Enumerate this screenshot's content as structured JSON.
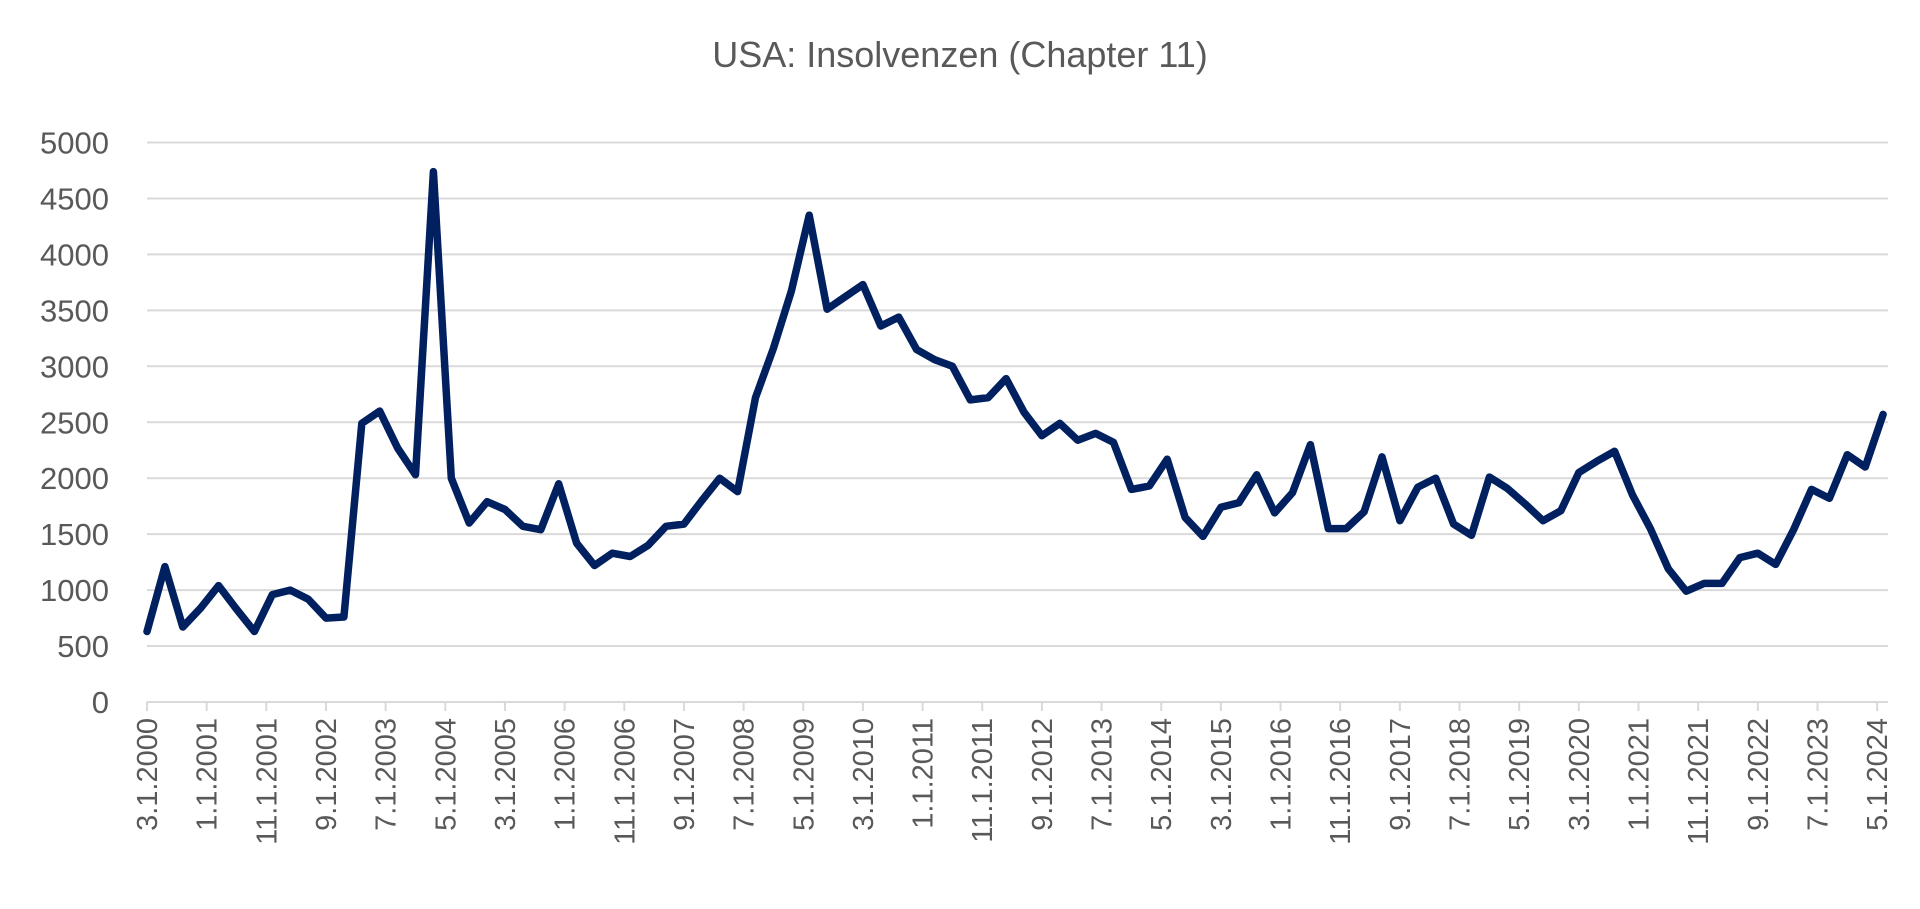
{
  "chart_data": {
    "type": "line",
    "title": "USA: Insolvenzen (Chapter 11)",
    "xlabel": "",
    "ylabel": "",
    "ylim": [
      0,
      5000
    ],
    "y_ticks": [
      "0",
      "500",
      "1000",
      "1500",
      "2000",
      "2500",
      "3000",
      "3500",
      "4000",
      "4500",
      "5000"
    ],
    "x_tick_labels": [
      "3.1.2000",
      "1.1.2001",
      "11.1.2001",
      "9.1.2002",
      "7.1.2003",
      "5.1.2004",
      "3.1.2005",
      "1.1.2006",
      "11.1.2006",
      "9.1.2007",
      "7.1.2008",
      "5.1.2009",
      "3.1.2010",
      "1.1.2011",
      "11.1.2011",
      "9.1.2012",
      "7.1.2013",
      "5.1.2014",
      "3.1.2015",
      "1.1.2016",
      "11.1.2016",
      "9.1.2017",
      "7.1.2018",
      "5.1.2019",
      "3.1.2020",
      "1.1.2021",
      "11.1.2021",
      "9.1.2022",
      "7.1.2023",
      "5.1.2024"
    ],
    "grid": "horizontal",
    "legend": "none",
    "line_color": "#00205f",
    "x": [
      "3.1.2000",
      "6.1.2000",
      "9.1.2000",
      "12.1.2000",
      "3.1.2001",
      "6.1.2001",
      "9.1.2001",
      "12.1.2001",
      "3.1.2002",
      "6.1.2002",
      "9.1.2002",
      "12.1.2002",
      "3.1.2003",
      "6.1.2003",
      "9.1.2003",
      "12.1.2003",
      "3.1.2004",
      "6.1.2004",
      "9.1.2004",
      "12.1.2004",
      "3.1.2005",
      "6.1.2005",
      "9.1.2005",
      "12.1.2005",
      "3.1.2006",
      "6.1.2006",
      "9.1.2006",
      "12.1.2006",
      "3.1.2007",
      "6.1.2007",
      "9.1.2007",
      "12.1.2007",
      "3.1.2008",
      "6.1.2008",
      "9.1.2008",
      "12.1.2008",
      "3.1.2009",
      "6.1.2009",
      "9.1.2009",
      "12.1.2009",
      "3.1.2010",
      "6.1.2010",
      "9.1.2010",
      "12.1.2010",
      "3.1.2011",
      "6.1.2011",
      "9.1.2011",
      "12.1.2011",
      "3.1.2012",
      "6.1.2012",
      "9.1.2012",
      "12.1.2012",
      "3.1.2013",
      "6.1.2013",
      "9.1.2013",
      "12.1.2013",
      "3.1.2014",
      "6.1.2014",
      "9.1.2014",
      "12.1.2014",
      "3.1.2015",
      "6.1.2015",
      "9.1.2015",
      "12.1.2015",
      "3.1.2016",
      "6.1.2016",
      "9.1.2016",
      "12.1.2016",
      "3.1.2017",
      "6.1.2017",
      "9.1.2017",
      "12.1.2017",
      "3.1.2018",
      "6.1.2018",
      "9.1.2018",
      "12.1.2018",
      "3.1.2019",
      "6.1.2019",
      "9.1.2019",
      "12.1.2019",
      "3.1.2020",
      "6.1.2020",
      "9.1.2020",
      "12.1.2020",
      "3.1.2021",
      "6.1.2021",
      "9.1.2021",
      "12.1.2021",
      "3.1.2022",
      "6.1.2022",
      "9.1.2022",
      "12.1.2022",
      "3.1.2023",
      "6.1.2023",
      "9.1.2023",
      "12.1.2023",
      "3.1.2024",
      "6.1.2024"
    ],
    "series": [
      {
        "values": [
          630,
          1210,
          670,
          840,
          1040,
          830,
          630,
          960,
          1000,
          920,
          750,
          760,
          2490,
          2600,
          2270,
          2030,
          4740,
          2000,
          1600,
          1790,
          1720,
          1570,
          1540,
          1950,
          1420,
          1220,
          1330,
          1300,
          1400,
          1570,
          1590,
          1800,
          2000,
          1880,
          2720,
          3160,
          3670,
          4350,
          3510,
          3620,
          3730,
          3360,
          3440,
          3150,
          3060,
          3000,
          2700,
          2720,
          2890,
          2590,
          2380,
          2490,
          2340,
          2400,
          2320,
          1900,
          1930,
          2170,
          1650,
          1480,
          1740,
          1780,
          2030,
          1690,
          1870,
          2300,
          1550,
          1550,
          1700,
          2190,
          1620,
          1920,
          2000,
          1590,
          1490,
          2010,
          1910,
          1770,
          1620,
          1710,
          2050,
          2150,
          2240,
          1850,
          1550,
          1190,
          990,
          1060,
          1060,
          1290,
          1330,
          1230,
          1540,
          1900,
          1820,
          2210,
          2100,
          2570
        ]
      }
    ]
  }
}
